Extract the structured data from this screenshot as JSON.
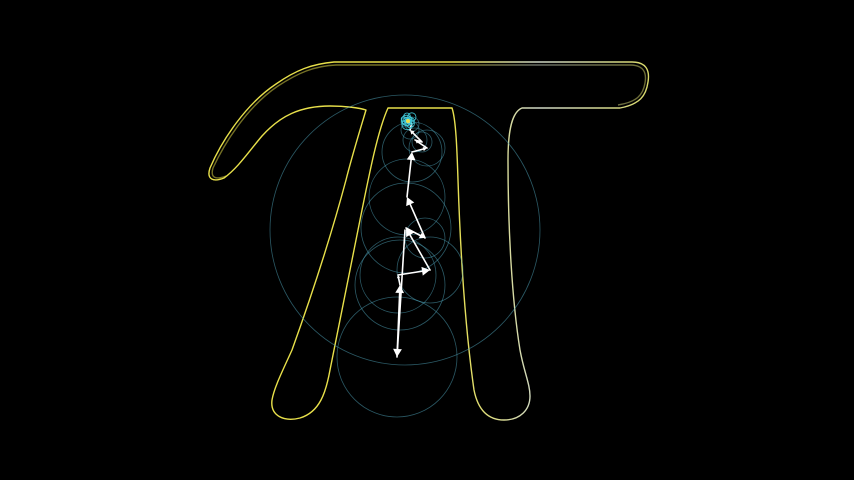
{
  "scene": {
    "background_color": "#000000",
    "subject": "pi-symbol",
    "outline_left_color": "#e8e04a",
    "outline_right_color": "#cfd8c8",
    "circle_color": "#4fa3b8",
    "vector_color": "#ffffff",
    "tip_cluster_color": "#3fc7d6"
  }
}
